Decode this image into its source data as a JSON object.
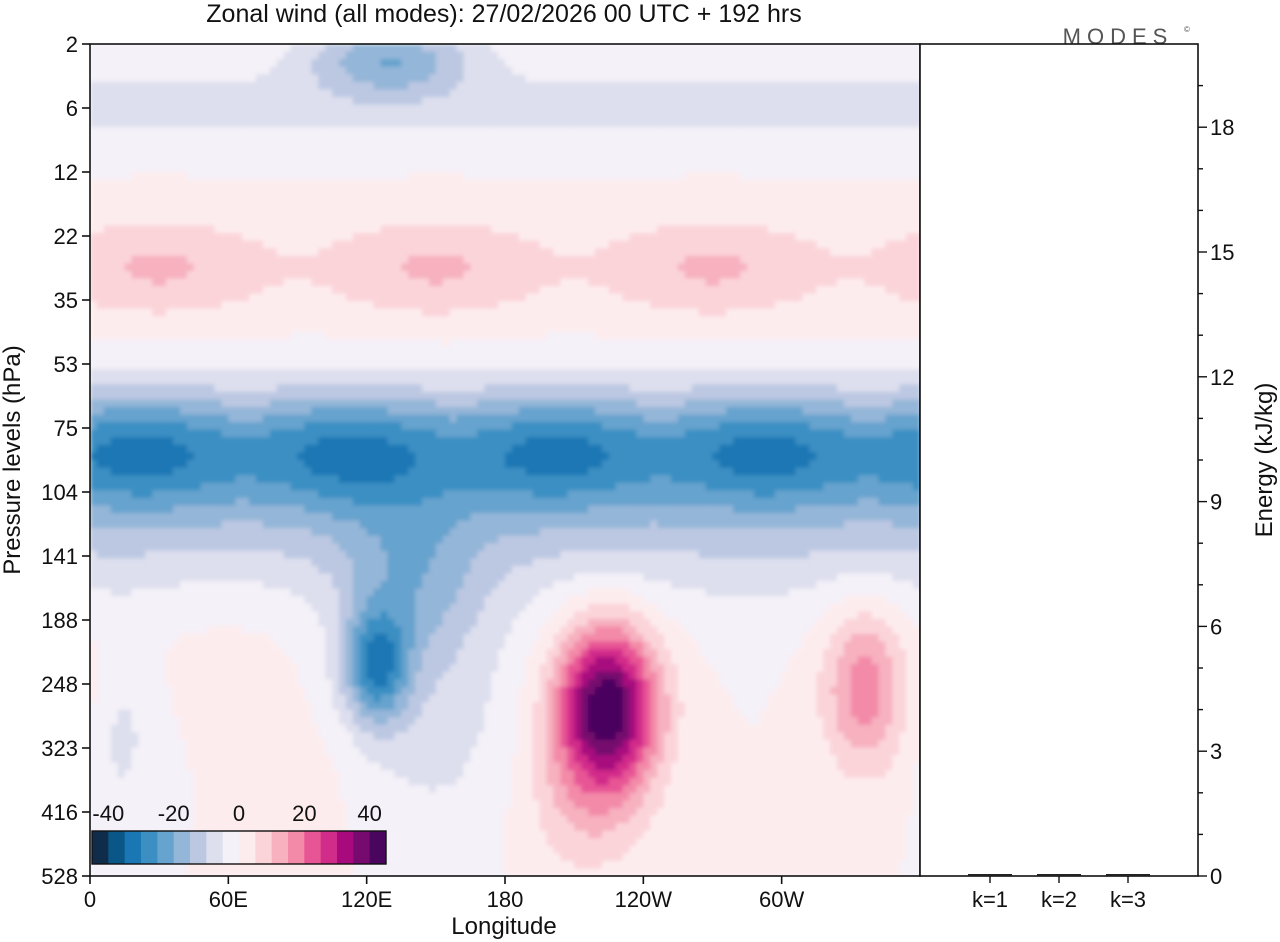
{
  "chart_data": [
    {
      "type": "heatmap",
      "title": "Zonal wind (all modes):  27/02/2026  00 UTC  + 192 hrs",
      "xlabel": "Longitude",
      "ylabel": "Pressure levels (hPa)",
      "x_ticks": [
        "0",
        "60E",
        "120E",
        "180",
        "120W",
        "60W"
      ],
      "x_tick_degrees": [
        0,
        60,
        120,
        180,
        240,
        300
      ],
      "x_range_degrees": [
        0,
        360
      ],
      "y_ticks": [
        "2",
        "6",
        "12",
        "22",
        "35",
        "53",
        "75",
        "104",
        "141",
        "188",
        "248",
        "323",
        "416",
        "528"
      ],
      "y_scale": "log-pressure (top = 2 hPa, bottom = 528 hPa)",
      "colorbar": {
        "ticks": [
          "-40",
          "-20",
          "0",
          "20",
          "40"
        ],
        "range": [
          -45,
          45
        ],
        "step": 5,
        "colors": [
          "#0f2d4a",
          "#0a5687",
          "#1a77b4",
          "#3b8fc3",
          "#66a3ce",
          "#94b6d8",
          "#bcc8e2",
          "#dddfee",
          "#f4f1f8",
          "#fdecee",
          "#fbd4d9",
          "#f7b1bf",
          "#f38aa8",
          "#e85595",
          "#d22c8a",
          "#a80a7e",
          "#760a6e",
          "#4a065e"
        ]
      },
      "features": [
        {
          "label": "easterly band",
          "lon": [
            0,
            360
          ],
          "pressure_hPa": [
            22,
            53
          ],
          "value": -28
        },
        {
          "label": "easterly cap",
          "lon": [
            110,
            180
          ],
          "pressure_hPa": [
            2,
            3
          ],
          "value": -18
        },
        {
          "label": "westerly band",
          "lon": [
            0,
            360
          ],
          "pressure_hPa": [
            6,
            15
          ],
          "value": 8
        },
        {
          "label": "easterly tongue",
          "lon": [
            110,
            150
          ],
          "pressure_hPa": [
            75,
            200
          ],
          "value": -25
        },
        {
          "label": "westerly jet core",
          "lon": [
            210,
            230
          ],
          "pressure_hPa": [
            120,
            230
          ],
          "value": 42
        },
        {
          "label": "westerly max east",
          "lon": [
            320,
            350
          ],
          "pressure_hPa": [
            104,
            250
          ],
          "value": 18
        }
      ]
    },
    {
      "type": "bar",
      "categories": [
        "k=1",
        "k=2",
        "k=3"
      ],
      "values": [
        0.02,
        0.02,
        0.02
      ],
      "ylabel": "Energy (kJ/kg)",
      "y_ticks": [
        "0",
        "3",
        "6",
        "9",
        "12",
        "15",
        "18"
      ],
      "ylim": [
        0,
        20
      ]
    }
  ],
  "branding": {
    "logo_text": "MODES"
  }
}
